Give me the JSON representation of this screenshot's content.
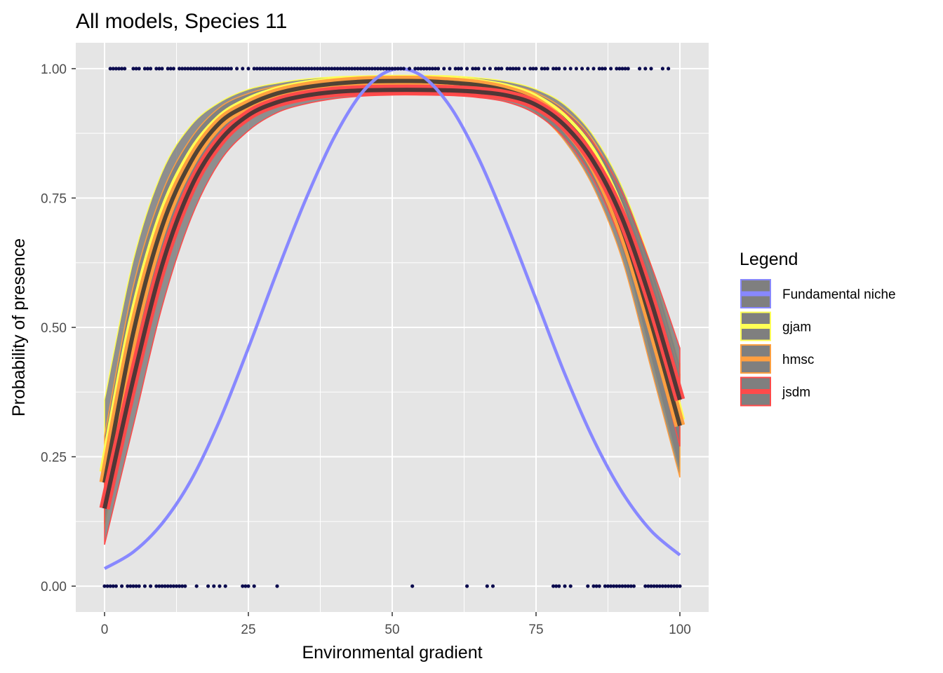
{
  "chart_data": {
    "type": "line",
    "title": "All models, Species 11",
    "xlabel": "Environmental gradient",
    "ylabel": "Probability of presence",
    "xlim": [
      -5,
      105
    ],
    "ylim": [
      -0.05,
      1.05
    ],
    "xticks": [
      0,
      25,
      50,
      75,
      100
    ],
    "xtick_labels": [
      "0",
      "25",
      "50",
      "75",
      "100"
    ],
    "yticks": [
      0,
      0.25,
      0.5,
      0.75,
      1
    ],
    "ytick_labels": [
      "0.00",
      "0.25",
      "0.50",
      "0.75",
      "1.00"
    ],
    "grid": true,
    "legend": {
      "title": "Legend",
      "position": "right",
      "entries": [
        {
          "label": "Fundamental niche",
          "color": "#8888ff"
        },
        {
          "label": "gjam",
          "color": "#ffff55"
        },
        {
          "label": "hmsc",
          "color": "#ff9f40"
        },
        {
          "label": "jsdm",
          "color": "#ff4a4a"
        }
      ]
    },
    "colors": {
      "panel_bg": "#e5e5e5",
      "grid": "#ffffff",
      "ribbon_fill": "#7f7f7f",
      "mean_line": "#333333",
      "points": "#0b0b4e"
    },
    "x": [
      0,
      5,
      10,
      15,
      20,
      25,
      30,
      35,
      40,
      45,
      50,
      55,
      60,
      65,
      70,
      75,
      80,
      85,
      90,
      95,
      100
    ],
    "series": [
      {
        "name": "Fundamental niche",
        "color": "#8888ff",
        "values": [
          0.034,
          0.066,
          0.121,
          0.204,
          0.32,
          0.46,
          0.608,
          0.748,
          0.869,
          0.957,
          0.998,
          0.987,
          0.928,
          0.827,
          0.697,
          0.554,
          0.41,
          0.283,
          0.181,
          0.107,
          0.06
        ]
      },
      {
        "name": "gjam",
        "color": "#ffff55",
        "values": [
          0.22,
          0.51,
          0.71,
          0.83,
          0.9,
          0.935,
          0.955,
          0.967,
          0.973,
          0.976,
          0.977,
          0.977,
          0.975,
          0.97,
          0.96,
          0.94,
          0.9,
          0.83,
          0.71,
          0.53,
          0.32
        ],
        "lower": [
          0.11,
          0.38,
          0.6,
          0.75,
          0.85,
          0.905,
          0.935,
          0.952,
          0.961,
          0.965,
          0.966,
          0.966,
          0.964,
          0.958,
          0.945,
          0.92,
          0.87,
          0.79,
          0.65,
          0.44,
          0.22
        ],
        "upper": [
          0.36,
          0.63,
          0.8,
          0.89,
          0.935,
          0.96,
          0.972,
          0.98,
          0.984,
          0.986,
          0.987,
          0.987,
          0.986,
          0.982,
          0.975,
          0.96,
          0.93,
          0.87,
          0.77,
          0.62,
          0.43
        ]
      },
      {
        "name": "hmsc",
        "color": "#ff9f40",
        "values": [
          0.2,
          0.49,
          0.695,
          0.82,
          0.895,
          0.93,
          0.952,
          0.964,
          0.971,
          0.975,
          0.976,
          0.976,
          0.973,
          0.968,
          0.957,
          0.935,
          0.89,
          0.815,
          0.69,
          0.51,
          0.31
        ],
        "lower": [
          0.12,
          0.4,
          0.62,
          0.77,
          0.86,
          0.912,
          0.94,
          0.954,
          0.962,
          0.966,
          0.967,
          0.967,
          0.965,
          0.958,
          0.944,
          0.915,
          0.86,
          0.77,
          0.63,
          0.42,
          0.21
        ],
        "upper": [
          0.29,
          0.58,
          0.76,
          0.865,
          0.925,
          0.952,
          0.966,
          0.975,
          0.98,
          0.982,
          0.983,
          0.983,
          0.981,
          0.977,
          0.969,
          0.953,
          0.92,
          0.86,
          0.75,
          0.6,
          0.41
        ]
      },
      {
        "name": "jsdm",
        "color": "#ff4a4a",
        "values": [
          0.15,
          0.4,
          0.62,
          0.77,
          0.86,
          0.91,
          0.935,
          0.948,
          0.955,
          0.958,
          0.959,
          0.959,
          0.958,
          0.955,
          0.948,
          0.93,
          0.89,
          0.82,
          0.71,
          0.55,
          0.36
        ],
        "lower": [
          0.08,
          0.31,
          0.54,
          0.71,
          0.82,
          0.88,
          0.915,
          0.932,
          0.942,
          0.947,
          0.949,
          0.949,
          0.948,
          0.944,
          0.935,
          0.912,
          0.865,
          0.785,
          0.66,
          0.48,
          0.27
        ],
        "upper": [
          0.24,
          0.5,
          0.7,
          0.82,
          0.895,
          0.935,
          0.955,
          0.964,
          0.969,
          0.971,
          0.972,
          0.972,
          0.971,
          0.969,
          0.963,
          0.948,
          0.915,
          0.855,
          0.76,
          0.62,
          0.46
        ]
      }
    ],
    "observations": {
      "presence_x": [
        1,
        1.5,
        2,
        2.5,
        3,
        3.5,
        5,
        5.5,
        6,
        7,
        7.5,
        8,
        9,
        9.5,
        10,
        11,
        11.5,
        12,
        13,
        13.5,
        14,
        14.5,
        15,
        15.5,
        16,
        16.5,
        17,
        17.5,
        18,
        18.5,
        19,
        19.5,
        20,
        20.5,
        21,
        21.5,
        22,
        23,
        24,
        25,
        26,
        26.5,
        27,
        27.5,
        28,
        28.5,
        29,
        29.5,
        30,
        30.5,
        31,
        31.5,
        32,
        32.5,
        33,
        33.5,
        34,
        34.5,
        35,
        35.5,
        36,
        36.5,
        37,
        37.5,
        38,
        38.5,
        39,
        39.5,
        40,
        40.5,
        41,
        41.5,
        42,
        42.5,
        43,
        43.5,
        44,
        44.5,
        45,
        45.5,
        46,
        46.5,
        47,
        47.5,
        48,
        48.5,
        49,
        49.5,
        50,
        50.5,
        51,
        51.5,
        52,
        53,
        54,
        54.5,
        55,
        55.5,
        56,
        56.5,
        57,
        57.5,
        58,
        59,
        60,
        61,
        61.5,
        62,
        63,
        64,
        64.5,
        65,
        66,
        67,
        68,
        68.5,
        69,
        70,
        70.5,
        71,
        71.5,
        72,
        73,
        74,
        74.5,
        75,
        76,
        76.5,
        77,
        78,
        78.5,
        79,
        80,
        81,
        82,
        83,
        84,
        85,
        86,
        86.5,
        87,
        88,
        89,
        89.5,
        90,
        90.5,
        91,
        93,
        94,
        95,
        97,
        98
      ],
      "absence_x": [
        0,
        0.5,
        1,
        1.5,
        2,
        3,
        4,
        4.5,
        5,
        5.5,
        6,
        7,
        8,
        9,
        9.5,
        10,
        10.5,
        11,
        11.5,
        12,
        12.5,
        13,
        13.5,
        14,
        16,
        18,
        19,
        20,
        21,
        24,
        24.5,
        25,
        26,
        30,
        53.5,
        63,
        66.5,
        67.5,
        78,
        78.5,
        79,
        80,
        81,
        84,
        85,
        85.5,
        86,
        87,
        87.5,
        88,
        88.5,
        89,
        89.5,
        90,
        90.5,
        91,
        91.5,
        92,
        94,
        94.5,
        95,
        95.5,
        96,
        96.5,
        97,
        97.5,
        98,
        98.5,
        99,
        99.5,
        100
      ]
    }
  }
}
